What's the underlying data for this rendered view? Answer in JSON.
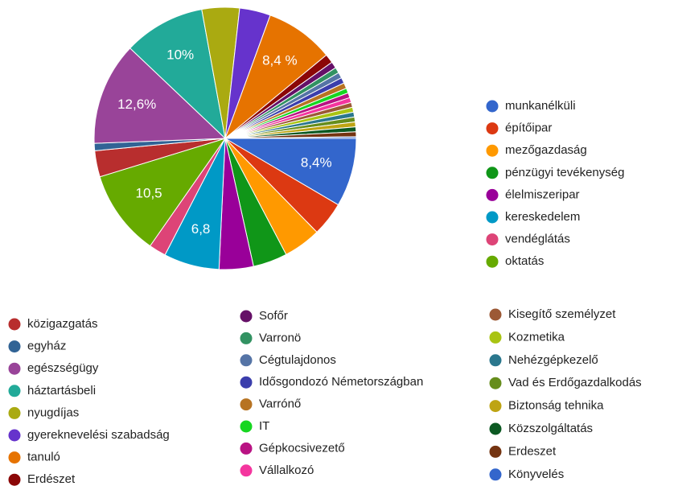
{
  "chart_data": {
    "type": "pie",
    "categories": [
      "munkanélküli",
      "építőipar",
      "mezőgazdaság",
      "pénzügyi tevékenység",
      "élelmiszeripar",
      "kereskedelem",
      "vendéglátás",
      "oktatás",
      "közigazgatás",
      "egyház",
      "egészségügy",
      "háztartásbeli",
      "nyugdíjas",
      "gyereknevelési szabadság",
      "tanuló",
      "Erdészet",
      "Sofőr",
      "Varronö",
      "Cégtulajdonos",
      "Idősgondozó Németországban",
      "Varrónő",
      "IT",
      "Gépkocsivezető",
      "Vállalkozó",
      "Kisegítő személyzet",
      "Kozmetika",
      "Nehézgépkezelő",
      "Vad és Erdőgazdalkodás",
      "Biztonság tehnika",
      "Közszolgáltatás",
      "Erdeszet",
      "Könyvelés"
    ],
    "values": [
      8.4,
      4.2,
      4.6,
      4.2,
      4.2,
      6.8,
      2.1,
      10.5,
      3.2,
      0.9,
      12.6,
      10,
      4.6,
      3.8,
      8.4,
      1.1,
      0.8,
      0.7,
      0.7,
      0.7,
      0.7,
      0.6,
      0.6,
      0.6,
      0.6,
      0.6,
      0.6,
      0.6,
      0.6,
      0.6,
      0.6,
      0.2
    ],
    "value_labels": [
      "8,4%",
      null,
      null,
      null,
      null,
      "6,8",
      null,
      "10,5",
      null,
      null,
      "12,6%",
      "10%",
      null,
      null,
      "8,4 %",
      null,
      null,
      null,
      null,
      null,
      null,
      null,
      null,
      null,
      null,
      null,
      null,
      null,
      null,
      null,
      null,
      null
    ],
    "colors": [
      "#3366cc",
      "#dc3912",
      "#ff9900",
      "#109618",
      "#990099",
      "#0099c6",
      "#dd4477",
      "#66aa00",
      "#b82e2e",
      "#316395",
      "#994499",
      "#22aa99",
      "#aaaa11",
      "#6633cc",
      "#e67300",
      "#8b0707",
      "#651067",
      "#329262",
      "#5574a6",
      "#3b3eac",
      "#b77322",
      "#16d620",
      "#b91383",
      "#f4359e",
      "#9c5935",
      "#a9c413",
      "#2a778d",
      "#668d1c",
      "#bea413",
      "#0c5922",
      "#743411",
      "#3366cc"
    ]
  }
}
